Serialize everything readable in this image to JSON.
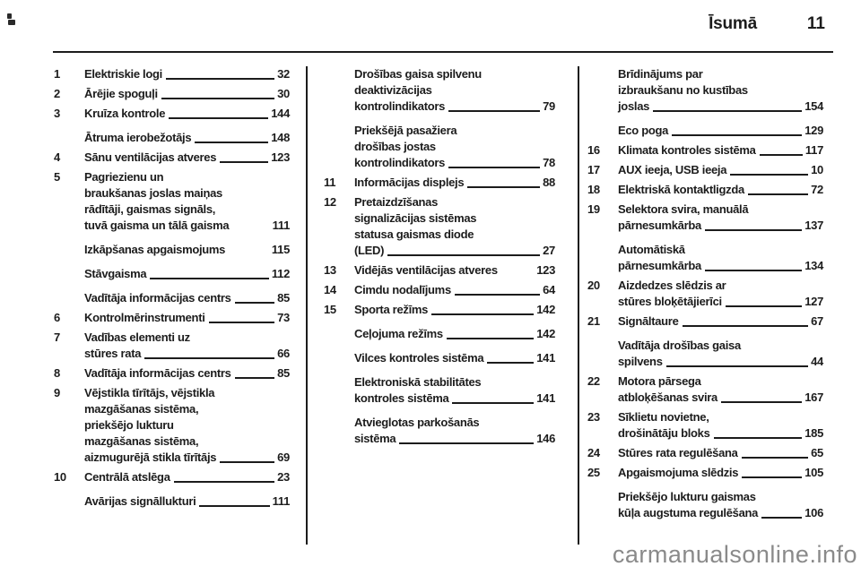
{
  "header": {
    "chapter_title": "Īsumā",
    "page_number": "11"
  },
  "watermark": "carmanualsonline.info",
  "columns": [
    {
      "items": [
        {
          "num": "1",
          "lines": [
            "Elektriskie logi"
          ],
          "page": "32",
          "leader": true,
          "gap": false
        },
        {
          "num": "2",
          "lines": [
            "Ārējie spoguļi"
          ],
          "page": "30",
          "leader": true,
          "gap": false
        },
        {
          "num": "3",
          "lines": [
            "Kruīza kontrole"
          ],
          "page": "144",
          "leader": true,
          "gap": false
        },
        {
          "num": "",
          "lines": [
            "Ātruma ierobežotājs"
          ],
          "page": "148",
          "leader": true,
          "gap": true
        },
        {
          "num": "4",
          "lines": [
            "Sānu ventilācijas atveres"
          ],
          "page": "123",
          "leader": true,
          "gap": false
        },
        {
          "num": "5",
          "lines": [
            "Pagriezienu un",
            "braukšanas joslas maiņas",
            "rādītāji, gaismas signāls,",
            "tuvā gaisma un tālā gaisma"
          ],
          "page": "111",
          "leader": false,
          "gap": false
        },
        {
          "num": "",
          "lines": [
            "Izkāpšanas apgaismojums"
          ],
          "page": "115",
          "leader": false,
          "gap": true
        },
        {
          "num": "",
          "lines": [
            "Stāvgaisma"
          ],
          "page": "112",
          "leader": true,
          "gap": true
        },
        {
          "num": "",
          "lines": [
            "Vadītāja informācijas centrs"
          ],
          "page": "85",
          "leader": true,
          "gap": true
        },
        {
          "num": "6",
          "lines": [
            "Kontrolmērinstrumenti"
          ],
          "page": "73",
          "leader": true,
          "gap": false
        },
        {
          "num": "7",
          "lines": [
            "Vadības elementi uz",
            "stūres rata"
          ],
          "page": "66",
          "leader": true,
          "gap": false
        },
        {
          "num": "8",
          "lines": [
            "Vadītāja informācijas centrs"
          ],
          "page": "85",
          "leader": true,
          "gap": false
        },
        {
          "num": "9",
          "lines": [
            "Vējstikla tīrītājs, vējstikla",
            "mazgāšanas sistēma,",
            "priekšējo lukturu",
            "mazgāšanas sistēma,",
            "aizmugurējā stikla tīrītājs"
          ],
          "page": "69",
          "leader": true,
          "gap": false
        },
        {
          "num": "10",
          "lines": [
            "Centrālā atslēga"
          ],
          "page": "23",
          "leader": true,
          "gap": false
        },
        {
          "num": "",
          "lines": [
            "Avārijas signāllukturi"
          ],
          "page": "111",
          "leader": true,
          "gap": true
        }
      ]
    },
    {
      "items": [
        {
          "num": "",
          "lines": [
            "Drošības gaisa spilvenu",
            "deaktivizācijas",
            "kontrolindikators"
          ],
          "page": "79",
          "leader": true,
          "gap": false
        },
        {
          "num": "",
          "lines": [
            "Priekšējā pasažiera",
            "drošības jostas",
            "kontrolindikators"
          ],
          "page": "78",
          "leader": true,
          "gap": true
        },
        {
          "num": "11",
          "lines": [
            "Informācijas displejs"
          ],
          "page": "88",
          "leader": true,
          "gap": false
        },
        {
          "num": "12",
          "lines": [
            "Pretaizdzīšanas",
            "signalizācijas sistēmas",
            "statusa gaismas diode",
            "(LED)"
          ],
          "page": "27",
          "leader": true,
          "gap": false
        },
        {
          "num": "13",
          "lines": [
            "Vidējās ventilācijas atveres"
          ],
          "page": "123",
          "leader": false,
          "gap": false
        },
        {
          "num": "14",
          "lines": [
            "Cimdu nodalījums"
          ],
          "page": "64",
          "leader": true,
          "gap": false
        },
        {
          "num": "15",
          "lines": [
            "Sporta režīms"
          ],
          "page": "142",
          "leader": true,
          "gap": false
        },
        {
          "num": "",
          "lines": [
            "Ceļojuma režīms"
          ],
          "page": "142",
          "leader": true,
          "gap": true
        },
        {
          "num": "",
          "lines": [
            "Vilces kontroles sistēma"
          ],
          "page": "141",
          "leader": true,
          "gap": true
        },
        {
          "num": "",
          "lines": [
            "Elektroniskā stabilitātes",
            "kontroles sistēma"
          ],
          "page": "141",
          "leader": true,
          "gap": true
        },
        {
          "num": "",
          "lines": [
            "Atvieglotas parkošanās",
            "sistēma"
          ],
          "page": "146",
          "leader": true,
          "gap": true
        }
      ]
    },
    {
      "items": [
        {
          "num": "",
          "lines": [
            "Brīdinājums par",
            "izbraukšanu no kustības",
            "joslas"
          ],
          "page": "154",
          "leader": true,
          "gap": false
        },
        {
          "num": "",
          "lines": [
            "Eco poga"
          ],
          "page": "129",
          "leader": true,
          "gap": true
        },
        {
          "num": "16",
          "lines": [
            "Klimata kontroles sistēma"
          ],
          "page": "117",
          "leader": true,
          "gap": false
        },
        {
          "num": "17",
          "lines": [
            "AUX ieeja, USB ieeja"
          ],
          "page": "10",
          "leader": true,
          "gap": false
        },
        {
          "num": "18",
          "lines": [
            "Elektriskā kontaktligzda"
          ],
          "page": "72",
          "leader": true,
          "gap": false
        },
        {
          "num": "19",
          "lines": [
            "Selektora svira, manuālā",
            "pārnesumkārba"
          ],
          "page": "137",
          "leader": true,
          "gap": false
        },
        {
          "num": "",
          "lines": [
            "Automātiskā",
            "pārnesumkārba"
          ],
          "page": "134",
          "leader": true,
          "gap": true
        },
        {
          "num": "20",
          "lines": [
            "Aizdedzes slēdzis ar",
            "stūres bloķētājierīci"
          ],
          "page": "127",
          "leader": true,
          "gap": false
        },
        {
          "num": "21",
          "lines": [
            "Signāltaure"
          ],
          "page": "67",
          "leader": true,
          "gap": false
        },
        {
          "num": "",
          "lines": [
            "Vadītāja drošības gaisa",
            "spilvens"
          ],
          "page": "44",
          "leader": true,
          "gap": true
        },
        {
          "num": "22",
          "lines": [
            "Motora pārsega",
            "atbloķēšanas svira"
          ],
          "page": "167",
          "leader": true,
          "gap": false
        },
        {
          "num": "23",
          "lines": [
            "Sīklietu novietne,",
            "drošinātāju bloks"
          ],
          "page": "185",
          "leader": true,
          "gap": false
        },
        {
          "num": "24",
          "lines": [
            "Stūres rata regulēšana"
          ],
          "page": "65",
          "leader": true,
          "gap": false
        },
        {
          "num": "25",
          "lines": [
            "Apgaismojuma slēdzis"
          ],
          "page": "105",
          "leader": true,
          "gap": false
        },
        {
          "num": "",
          "lines": [
            "Priekšējo lukturu gaismas",
            "kūļa augstuma regulēšana"
          ],
          "page": "106",
          "leader": true,
          "gap": true
        }
      ]
    }
  ]
}
